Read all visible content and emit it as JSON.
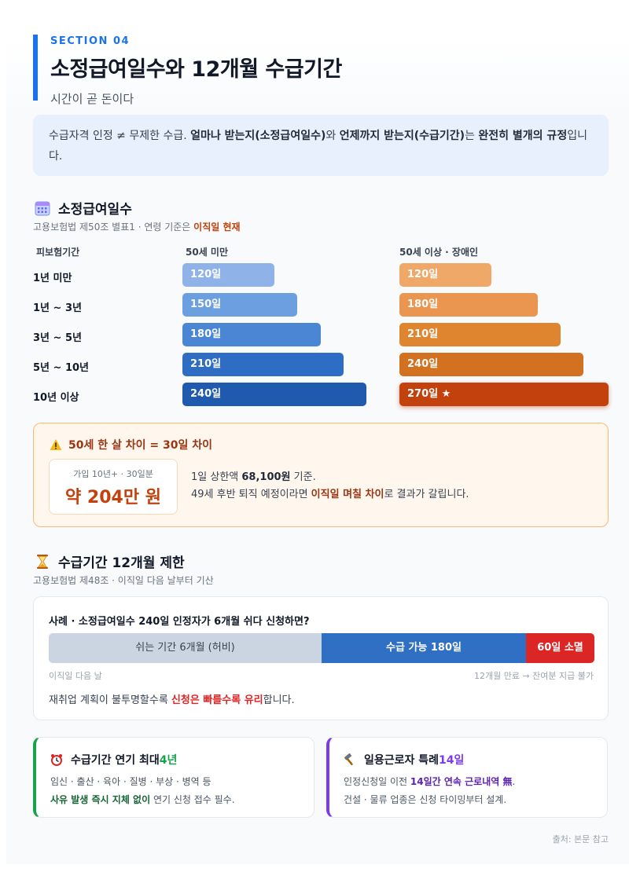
{
  "header": {
    "section": "SECTION 04",
    "title": "소정급여일수와 12개월 수급기간",
    "subtitle": "시간이 곧 돈이다"
  },
  "intro": {
    "p1": "수급자격 인정 ≠ 무제한 수급. ",
    "b1": "얼마나 받는지(소정급여일수)",
    "p2": "와 ",
    "b2": "언제까지 받는지(수급기간)",
    "p3": "는 ",
    "b3": "완전히 별개의 규정",
    "p4": "입니다."
  },
  "benefit_days": {
    "heading": "소정급여일수",
    "icon": "calendar-icon",
    "source": "고용보험법 제50조 별표1 · 연령 기준은 ",
    "source_highlight": "이직일 현재",
    "columns": [
      "피보험기간",
      "50세 미만",
      "50세 이상 · 장애인"
    ],
    "rows": [
      {
        "period": "1년 미만",
        "under50": "120일",
        "over50": "120일"
      },
      {
        "period": "1년 ~ 3년",
        "under50": "150일",
        "over50": "180일"
      },
      {
        "period": "3년 ~ 5년",
        "under50": "180일",
        "over50": "210일"
      },
      {
        "period": "5년 ~ 10년",
        "under50": "210일",
        "over50": "240일"
      },
      {
        "period": "10년 이상",
        "under50": "240일",
        "over50": "270일 ★"
      }
    ],
    "colors_under50": [
      "#8fb3e8",
      "#6c9fdf",
      "#4a86d4",
      "#2f6dc4",
      "#1f5aaf"
    ],
    "colors_over50": [
      "#f0a868",
      "#eb9650",
      "#e0852f",
      "#d2711f",
      "#c2410c"
    ]
  },
  "warning": {
    "icon": "warning-icon",
    "title": "50세 한 살 차이 = 30일 차이",
    "card_caption": "가입 10년+ · 30일분",
    "card_value": "약 204만 원",
    "line1_a": "1일 상한액 ",
    "line1_b": "68,100원",
    "line1_c": " 기준.",
    "line2_a": "49세 후반 퇴직 예정이라면 ",
    "line2_b": "이직일 며칠 차이",
    "line2_c": "로 결과가 갈립니다."
  },
  "period": {
    "heading": "수급기간 12개월 제한",
    "icon": "hourglass-icon",
    "source": "고용보험법 제48조 · 이직일 다음 날부터 기산",
    "case": "사례 · 소정급여일수 240일 인정자가 6개월 쉬다 신청하면?",
    "seg_rest": "쉬는 기간 6개월 (허비)",
    "seg_receive": "수급 가능 180일",
    "seg_lost": "60일 소멸",
    "left_label": "이직일 다음 날",
    "right_label": "12개월 만료 → 잔여분 지급 불가",
    "note_a": "재취업 계획이 불투명할수록 ",
    "note_b": "신청은 빠를수록 유리",
    "note_c": "합니다."
  },
  "extension": {
    "icon": "alarm-icon",
    "title_a": "수급기간 연기 최대 ",
    "title_b": "4년",
    "line1": "임신 · 출산 · 육아 · 질병 · 부상 · 병역 등",
    "line2_a": "사유 발생 즉시 지체 없이",
    "line2_b": " 연기 신청 접수 필수."
  },
  "daily": {
    "icon": "hammer-icon",
    "title_a": "일용근로자 특례 ",
    "title_b": "14일",
    "line1_a": "인정신청일 이전 ",
    "line1_b": "14일간 연속 근로내역 無",
    "line1_c": ".",
    "line2": "건설 · 물류 업종은 신청 타이밍부터 설계."
  },
  "source_note": "출처: 본문 참고"
}
